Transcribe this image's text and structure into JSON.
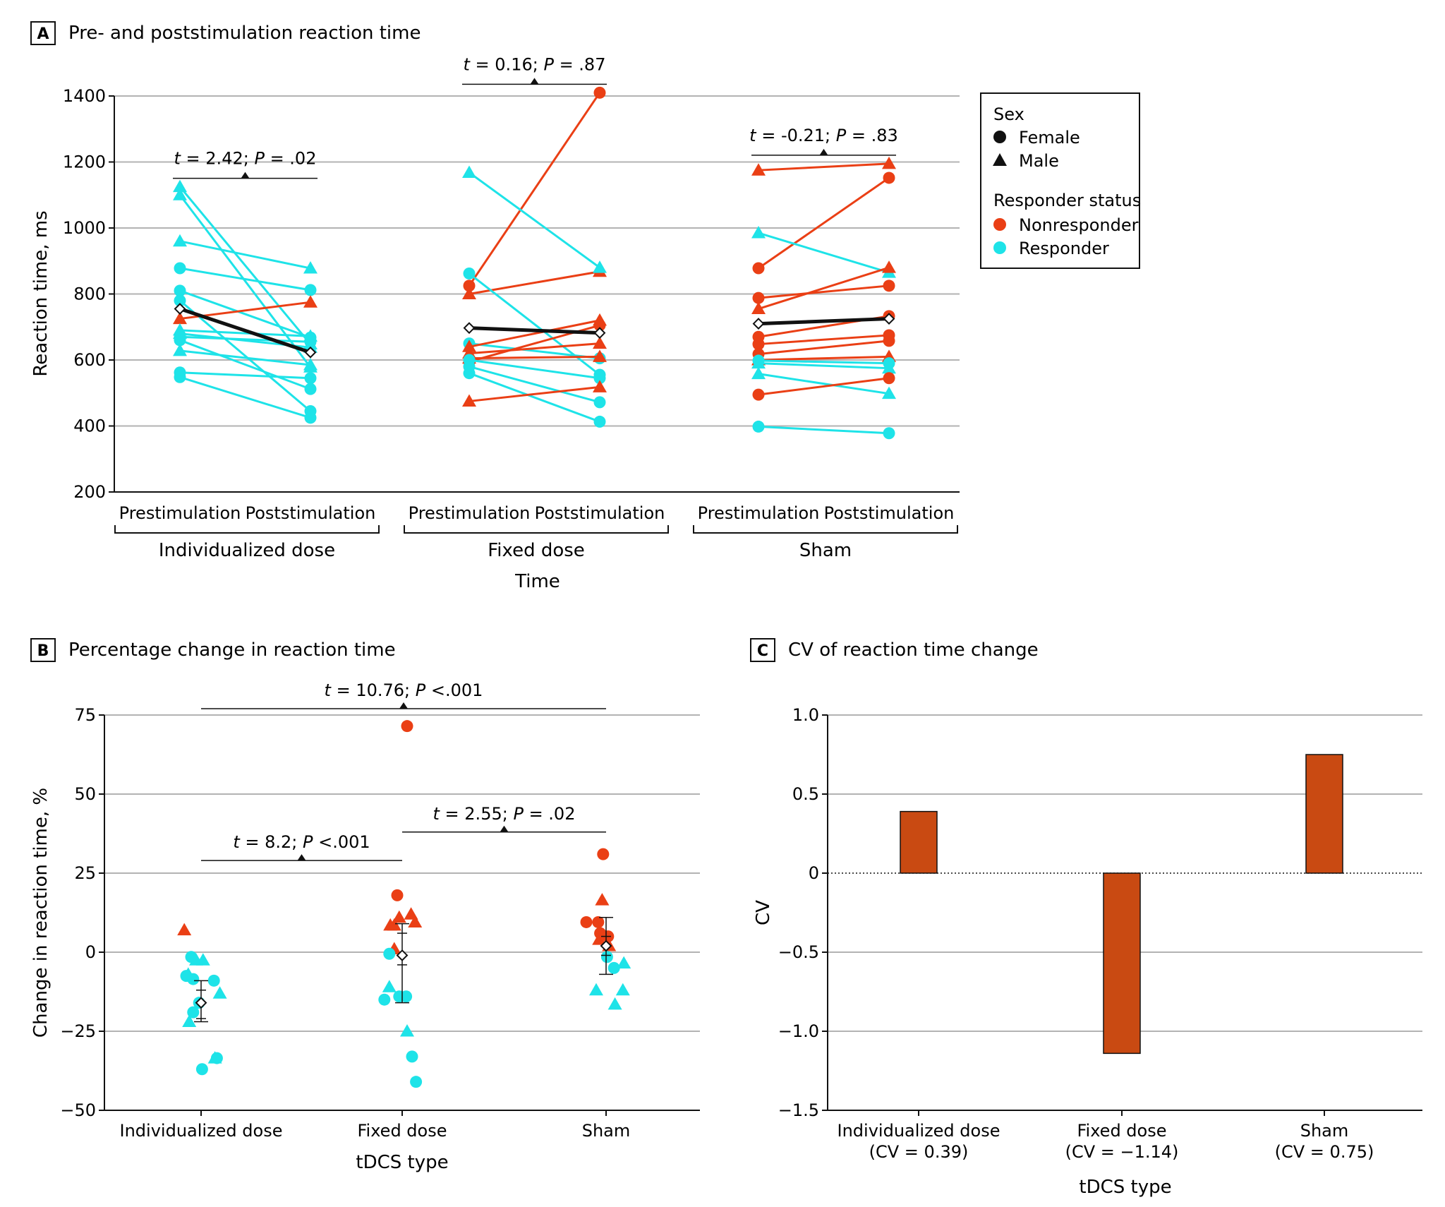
{
  "colors": {
    "nonresponder": "#ea3f15",
    "responder": "#1ee3e8",
    "mean": "#111111",
    "bar": "#c94a12",
    "grid": "#b3b3b3"
  },
  "legend": {
    "sex_title": "Sex",
    "female": "Female",
    "male": "Male",
    "status_title": "Responder status",
    "nonresponder": "Nonresponder",
    "responder": "Responder"
  },
  "chart_data": [
    {
      "panel": "A",
      "type": "line",
      "title": "Pre- and poststimulation reaction time",
      "ylabel": "Reaction time, ms",
      "xlabel": "Time",
      "ylim": [
        200,
        1400
      ],
      "yticks": [
        200,
        400,
        600,
        800,
        1000,
        1200,
        1400
      ],
      "time_labels": [
        "Prestimulation",
        "Poststimulation"
      ],
      "groups": [
        {
          "name": "Individualized dose",
          "stat_t": "2.42",
          "stat_p": ".02",
          "mean": [
            755,
            623
          ],
          "subjects": [
            {
              "pre": 1125,
              "post": 648,
              "sex": "M",
              "status": "responder"
            },
            {
              "pre": 1100,
              "post": 578,
              "sex": "M",
              "status": "responder"
            },
            {
              "pre": 960,
              "post": 878,
              "sex": "M",
              "status": "responder"
            },
            {
              "pre": 878,
              "post": 812,
              "sex": "F",
              "status": "responder"
            },
            {
              "pre": 810,
              "post": 668,
              "sex": "F",
              "status": "responder"
            },
            {
              "pre": 780,
              "post": 445,
              "sex": "F",
              "status": "responder"
            },
            {
              "pre": 725,
              "post": 775,
              "sex": "M",
              "status": "nonresponder"
            },
            {
              "pre": 690,
              "post": 672,
              "sex": "M",
              "status": "responder"
            },
            {
              "pre": 680,
              "post": 638,
              "sex": "M",
              "status": "responder"
            },
            {
              "pre": 670,
              "post": 655,
              "sex": "F",
              "status": "responder"
            },
            {
              "pre": 660,
              "post": 512,
              "sex": "F",
              "status": "responder"
            },
            {
              "pre": 628,
              "post": 585,
              "sex": "M",
              "status": "responder"
            },
            {
              "pre": 562,
              "post": 545,
              "sex": "F",
              "status": "responder"
            },
            {
              "pre": 548,
              "post": 425,
              "sex": "F",
              "status": "responder"
            }
          ]
        },
        {
          "name": "Fixed dose",
          "stat_t": "0.16",
          "stat_p": ".87",
          "mean": [
            697,
            682
          ],
          "subjects": [
            {
              "pre": 825,
              "post": 1410,
              "sex": "F",
              "status": "nonresponder"
            },
            {
              "pre": 800,
              "post": 868,
              "sex": "M",
              "status": "nonresponder"
            },
            {
              "pre": 1168,
              "post": 880,
              "sex": "M",
              "status": "responder"
            },
            {
              "pre": 862,
              "post": 555,
              "sex": "F",
              "status": "responder"
            },
            {
              "pre": 650,
              "post": 605,
              "sex": "F",
              "status": "responder"
            },
            {
              "pre": 640,
              "post": 720,
              "sex": "M",
              "status": "nonresponder"
            },
            {
              "pre": 620,
              "post": 650,
              "sex": "M",
              "status": "nonresponder"
            },
            {
              "pre": 605,
              "post": 610,
              "sex": "M",
              "status": "nonresponder"
            },
            {
              "pre": 595,
              "post": 705,
              "sex": "F",
              "status": "nonresponder"
            },
            {
              "pre": 600,
              "post": 545,
              "sex": "F",
              "status": "responder"
            },
            {
              "pre": 580,
              "post": 472,
              "sex": "F",
              "status": "responder"
            },
            {
              "pre": 560,
              "post": 413,
              "sex": "F",
              "status": "responder"
            },
            {
              "pre": 475,
              "post": 518,
              "sex": "M",
              "status": "nonresponder"
            }
          ]
        },
        {
          "name": "Sham",
          "stat_t": "-0.21",
          "stat_p": ".83",
          "mean": [
            710,
            725
          ],
          "subjects": [
            {
              "pre": 1175,
              "post": 1195,
              "sex": "M",
              "status": "nonresponder"
            },
            {
              "pre": 878,
              "post": 1152,
              "sex": "F",
              "status": "nonresponder"
            },
            {
              "pre": 985,
              "post": 865,
              "sex": "M",
              "status": "responder"
            },
            {
              "pre": 788,
              "post": 825,
              "sex": "F",
              "status": "nonresponder"
            },
            {
              "pre": 755,
              "post": 880,
              "sex": "M",
              "status": "nonresponder"
            },
            {
              "pre": 670,
              "post": 733,
              "sex": "F",
              "status": "nonresponder"
            },
            {
              "pre": 648,
              "post": 675,
              "sex": "F",
              "status": "nonresponder"
            },
            {
              "pre": 618,
              "post": 658,
              "sex": "F",
              "status": "nonresponder"
            },
            {
              "pre": 600,
              "post": 610,
              "sex": "M",
              "status": "nonresponder"
            },
            {
              "pre": 598,
              "post": 590,
              "sex": "F",
              "status": "responder"
            },
            {
              "pre": 590,
              "post": 575,
              "sex": "M",
              "status": "responder"
            },
            {
              "pre": 558,
              "post": 498,
              "sex": "M",
              "status": "responder"
            },
            {
              "pre": 495,
              "post": 545,
              "sex": "F",
              "status": "nonresponder"
            },
            {
              "pre": 398,
              "post": 378,
              "sex": "F",
              "status": "responder"
            }
          ]
        }
      ]
    },
    {
      "panel": "B",
      "type": "scatter",
      "title": "Percentage change in reaction time",
      "ylabel": "Change in reaction time, %",
      "xlabel": "tDCS type",
      "ylim": [
        -50,
        75
      ],
      "yticks": [
        -50,
        -25,
        0,
        25,
        50,
        75
      ],
      "categories": [
        "Individualized dose",
        "Fixed dose",
        "Sham"
      ],
      "comparisons": [
        {
          "from": 0,
          "to": 2,
          "t": "10.76",
          "p": "<.001",
          "y": 77
        },
        {
          "from": 0,
          "to": 1,
          "t": "8.2",
          "p": "<.001",
          "y": 29
        },
        {
          "from": 1,
          "to": 2,
          "t": "2.55",
          "p": ".02",
          "y": 38
        }
      ],
      "summary": [
        {
          "mean": -16,
          "sd_low": -22,
          "sd_high": -9,
          "ci_low": -21,
          "ci_high": -12
        },
        {
          "mean": -1,
          "sd_low": -16,
          "sd_high": 9,
          "ci_low": -4,
          "ci_high": 6
        },
        {
          "mean": 2,
          "sd_low": -7,
          "sd_high": 11,
          "ci_low": -1,
          "ci_high": 5
        }
      ],
      "points": [
        [
          {
            "dx": -0.17,
            "y": 7,
            "sex": "M",
            "status": "nonresponder"
          },
          {
            "dx": -0.15,
            "y": -7.5,
            "sex": "F",
            "status": "responder"
          },
          {
            "dx": -0.13,
            "y": -7,
            "sex": "M",
            "status": "responder"
          },
          {
            "dx": -0.1,
            "y": -1.5,
            "sex": "F",
            "status": "responder"
          },
          {
            "dx": -0.08,
            "y": -8.5,
            "sex": "F",
            "status": "responder"
          },
          {
            "dx": -0.05,
            "y": -2.5,
            "sex": "M",
            "status": "responder"
          },
          {
            "dx": -0.12,
            "y": -22,
            "sex": "M",
            "status": "responder"
          },
          {
            "dx": -0.08,
            "y": -19,
            "sex": "F",
            "status": "responder"
          },
          {
            "dx": -0.02,
            "y": -16,
            "sex": "F",
            "status": "responder"
          },
          {
            "dx": 0.02,
            "y": -2.5,
            "sex": "M",
            "status": "responder"
          },
          {
            "dx": 0.13,
            "y": -9,
            "sex": "F",
            "status": "responder"
          },
          {
            "dx": 0.19,
            "y": -13,
            "sex": "M",
            "status": "responder"
          },
          {
            "dx": 0.01,
            "y": -37,
            "sex": "F",
            "status": "responder"
          },
          {
            "dx": 0.14,
            "y": -33.5,
            "sex": "M",
            "status": "responder"
          },
          {
            "dx": 0.16,
            "y": -33.5,
            "sex": "F",
            "status": "responder"
          }
        ],
        [
          {
            "dx": -0.05,
            "y": 18,
            "sex": "F",
            "status": "nonresponder"
          },
          {
            "dx": 0.09,
            "y": 12,
            "sex": "M",
            "status": "nonresponder"
          },
          {
            "dx": 0.13,
            "y": 9.5,
            "sex": "M",
            "status": "nonresponder"
          },
          {
            "dx": -0.12,
            "y": 8.5,
            "sex": "M",
            "status": "nonresponder"
          },
          {
            "dx": -0.08,
            "y": 8.5,
            "sex": "M",
            "status": "nonresponder"
          },
          {
            "dx": -0.03,
            "y": 11,
            "sex": "M",
            "status": "nonresponder"
          },
          {
            "dx": -0.08,
            "y": 1,
            "sex": "M",
            "status": "nonresponder"
          },
          {
            "dx": 0.05,
            "y": 71.5,
            "sex": "F",
            "status": "nonresponder"
          },
          {
            "dx": -0.13,
            "y": -0.5,
            "sex": "F",
            "status": "responder"
          },
          {
            "dx": -0.13,
            "y": -11,
            "sex": "M",
            "status": "responder"
          },
          {
            "dx": -0.18,
            "y": -15,
            "sex": "F",
            "status": "responder"
          },
          {
            "dx": -0.03,
            "y": -14,
            "sex": "F",
            "status": "responder"
          },
          {
            "dx": 0.04,
            "y": -14,
            "sex": "F",
            "status": "responder"
          },
          {
            "dx": 0.05,
            "y": -25,
            "sex": "M",
            "status": "responder"
          },
          {
            "dx": 0.1,
            "y": -33,
            "sex": "F",
            "status": "responder"
          },
          {
            "dx": 0.14,
            "y": -41,
            "sex": "F",
            "status": "responder"
          }
        ],
        [
          {
            "dx": -0.2,
            "y": 9.5,
            "sex": "F",
            "status": "nonresponder"
          },
          {
            "dx": -0.08,
            "y": 9.5,
            "sex": "F",
            "status": "nonresponder"
          },
          {
            "dx": -0.04,
            "y": 16.5,
            "sex": "M",
            "status": "nonresponder"
          },
          {
            "dx": -0.03,
            "y": 31,
            "sex": "F",
            "status": "nonresponder"
          },
          {
            "dx": -0.06,
            "y": 6,
            "sex": "F",
            "status": "nonresponder"
          },
          {
            "dx": -0.07,
            "y": 4,
            "sex": "M",
            "status": "nonresponder"
          },
          {
            "dx": 0.02,
            "y": 5,
            "sex": "F",
            "status": "nonresponder"
          },
          {
            "dx": 0.03,
            "y": 2,
            "sex": "M",
            "status": "nonresponder"
          },
          {
            "dx": -0.1,
            "y": -12,
            "sex": "M",
            "status": "responder"
          },
          {
            "dx": 0.01,
            "y": -1.5,
            "sex": "F",
            "status": "responder"
          },
          {
            "dx": 0.08,
            "y": -5,
            "sex": "F",
            "status": "responder"
          },
          {
            "dx": 0.09,
            "y": -16.5,
            "sex": "M",
            "status": "responder"
          },
          {
            "dx": 0.18,
            "y": -3.5,
            "sex": "M",
            "status": "responder"
          },
          {
            "dx": 0.17,
            "y": -12,
            "sex": "M",
            "status": "responder"
          }
        ]
      ]
    },
    {
      "panel": "C",
      "type": "bar",
      "title": "CV of reaction time change",
      "ylabel": "CV",
      "xlabel": "tDCS type",
      "ylim": [
        -1.5,
        1.0
      ],
      "yticks": [
        -1.5,
        -1.0,
        -0.5,
        0,
        0.5,
        1.0
      ],
      "ytick_labels": [
        "−1.5",
        "−1.0",
        "−0.5",
        "0",
        "0.5",
        "1.0"
      ],
      "categories": [
        "Individualized dose",
        "Fixed dose",
        "Sham"
      ],
      "category_sublabels": [
        "(CV = 0.39)",
        "(CV = −1.14)",
        "(CV = 0.75)"
      ],
      "values": [
        0.39,
        -1.14,
        0.75
      ]
    }
  ]
}
